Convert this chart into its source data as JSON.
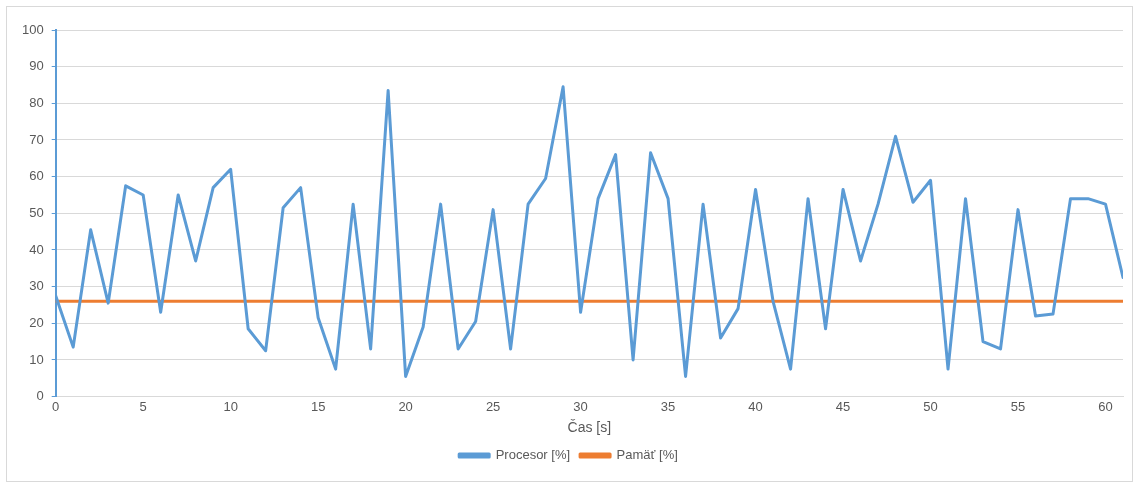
{
  "chart_data": {
    "type": "line",
    "xlabel": "Čas [s]",
    "x": [
      0,
      1,
      2,
      3,
      4,
      5,
      6,
      7,
      8,
      9,
      10,
      11,
      12,
      13,
      14,
      15,
      16,
      17,
      18,
      19,
      20,
      21,
      22,
      23,
      24,
      25,
      26,
      27,
      28,
      29,
      30,
      31,
      32,
      33,
      34,
      35,
      36,
      37,
      38,
      39,
      40,
      41,
      42,
      43,
      44,
      45,
      46,
      47,
      48,
      49,
      50,
      51,
      52,
      53,
      54,
      55,
      56,
      57,
      58,
      59,
      60,
      61
    ],
    "series": [
      {
        "name": "Procesor [%]",
        "color": "#5b9bd5",
        "values": [
          27.5,
          13.5,
          45.5,
          25.5,
          57.5,
          55,
          23,
          55,
          37,
          57,
          62,
          18.5,
          12.5,
          51.5,
          57,
          21.5,
          7.5,
          52.5,
          13,
          83.5,
          5.5,
          19,
          52.5,
          13,
          20.5,
          51,
          13,
          52.5,
          59.5,
          84.5,
          23,
          54,
          66,
          10,
          66.5,
          54,
          5.5,
          52.5,
          16,
          24,
          56.5,
          26,
          7.5,
          54,
          18.5,
          56.5,
          37,
          52.5,
          71,
          53,
          59,
          7.5,
          54,
          15,
          13,
          51,
          22,
          22.5,
          54,
          54,
          52.5,
          32.5
        ]
      },
      {
        "name": "Pamäť [%]",
        "color": "#ed7d31",
        "values": [
          26,
          26,
          26,
          26,
          26,
          26,
          26,
          26,
          26,
          26,
          26,
          26,
          26,
          26,
          26,
          26,
          26,
          26,
          26,
          26,
          26,
          26,
          26,
          26,
          26,
          26,
          26,
          26,
          26,
          26,
          26,
          26,
          26,
          26,
          26,
          26,
          26,
          26,
          26,
          26,
          26,
          26,
          26,
          26,
          26,
          26,
          26,
          26,
          26,
          26,
          26,
          26,
          26,
          26,
          26,
          26,
          26,
          26,
          26,
          26,
          26,
          26
        ]
      }
    ],
    "xlim": [
      0,
      61
    ],
    "xticks": [
      0,
      5,
      10,
      15,
      20,
      25,
      30,
      35,
      40,
      45,
      50,
      55,
      60
    ],
    "ylim": [
      0,
      100
    ],
    "yticks": [
      0,
      10,
      20,
      30,
      40,
      50,
      60,
      70,
      80,
      90,
      100
    ],
    "grid": "y",
    "legend": "bottom",
    "marker": "none",
    "line_style": "solid"
  }
}
